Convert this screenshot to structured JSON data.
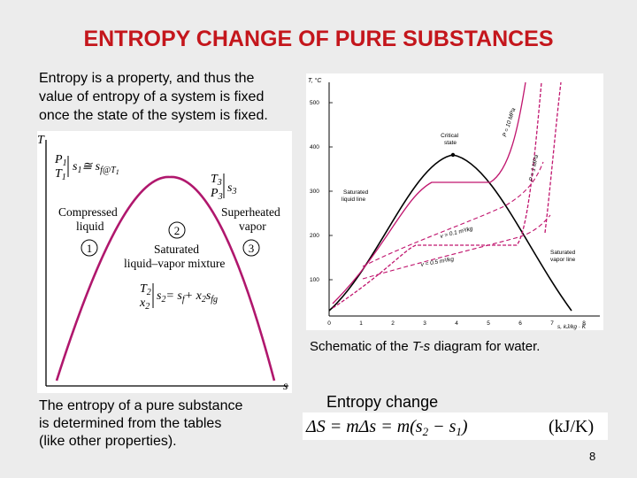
{
  "title": "ENTROPY CHANGE OF PURE SUBSTANCES",
  "intro_text": "Entropy is a property, and thus the\nvalue of entropy of a system is fixed\nonce the state of the system is fixed.",
  "bottom_text": "The entropy of a pure substance\nis determined from the tables\n(like other properties).",
  "caption": {
    "prefix": "Schematic of the ",
    "italic": "T-s",
    "suffix": " diagram for water."
  },
  "entropy_change_label": "Entropy change",
  "page_number": "8",
  "left_diagram": {
    "axis_t": "T",
    "axis_s": "s",
    "state1_label_top": "P",
    "state1_label_bottom": "T",
    "state1_eq": "s",
    "state1_eq_rhs": "≅ s",
    "state1_sub": "f@T",
    "region_compressed": "Compressed\nliquid",
    "region_superheated": "Superheated\nvapor",
    "region_saturated": "Saturated\nliquid–vapor mixture",
    "state3_top": "T",
    "state3_bottom": "P",
    "state3_eq": "s",
    "state2_top": "T",
    "state2_bottom": "x",
    "state2_eq": "s",
    "state2_eq_rhs": "= s",
    "state2_eq_tail": "+ x",
    "circle1": "1",
    "circle2": "2",
    "circle3": "3"
  },
  "right_diagram": {
    "axis_t": "T, °C",
    "axis_s": "s, kJ/kg · K",
    "y_ticks": [
      "500",
      "400",
      "300",
      "200",
      "100"
    ],
    "x_ticks": [
      "0",
      "1",
      "2",
      "3",
      "4",
      "5",
      "6",
      "7",
      "8"
    ],
    "label_critical": "Critical\nstate",
    "label_sat_liquid": "Saturated\nliquid line",
    "label_sat_vapor": "Saturated\nvapor line",
    "label_p10": "P = 10 MPa",
    "label_p1": "P = 1 MPa",
    "label_v01": "v = 0.1 m³/kg",
    "label_v05": "v = 0.5 m³/kg"
  },
  "formula": {
    "lhs": "ΔS = mΔs = m(s",
    "sub2": "2",
    "mid": " − s",
    "sub1": "1",
    "close": ")",
    "units": "(kJ/K)"
  }
}
